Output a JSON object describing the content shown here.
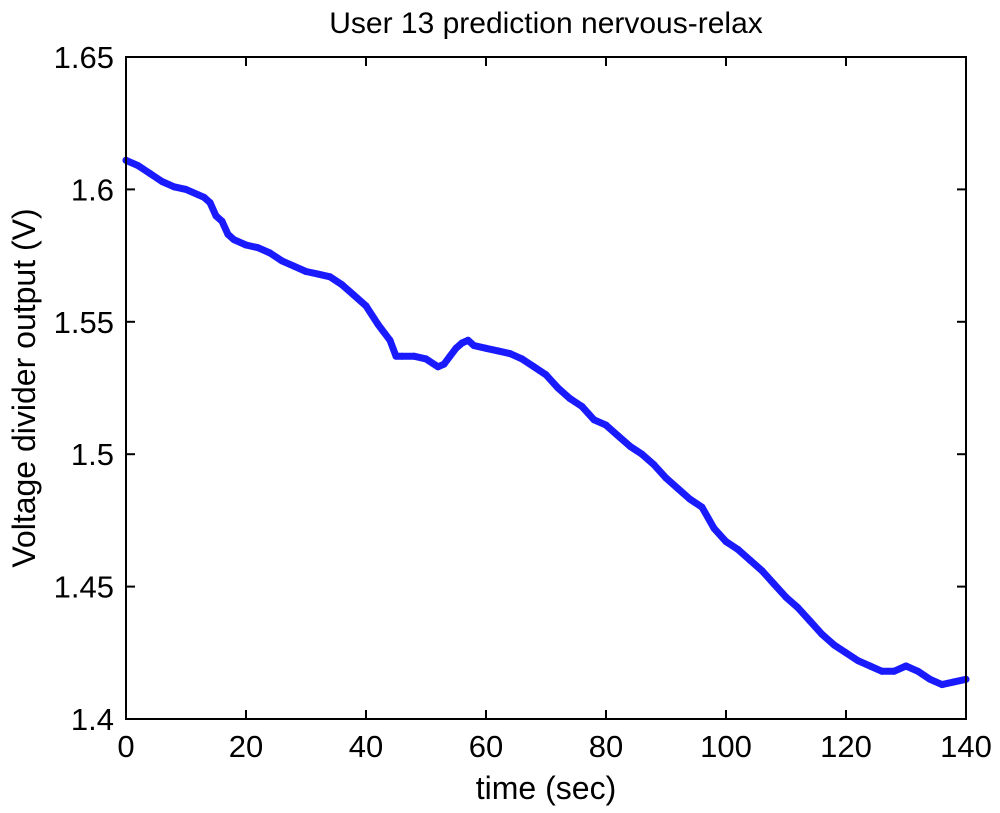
{
  "chart_data": {
    "type": "line",
    "title": "User 13 prediction nervous-relax",
    "xlabel": "time (sec)",
    "ylabel": "Voltage divider output (V)",
    "xlim": [
      0,
      140
    ],
    "ylim": [
      1.4,
      1.65
    ],
    "xticks": [
      0,
      20,
      40,
      60,
      80,
      100,
      120,
      140
    ],
    "xtick_labels": [
      "0",
      "20",
      "40",
      "60",
      "80",
      "100",
      "120",
      "140"
    ],
    "yticks": [
      1.4,
      1.45,
      1.5,
      1.55,
      1.6,
      1.65
    ],
    "ytick_labels": [
      "1.4",
      "1.45",
      "1.5",
      "1.55",
      "1.6",
      "1.65"
    ],
    "grid": false,
    "legend": false,
    "series": [
      {
        "color": "#1a1aff",
        "x": [
          0,
          2,
          4,
          6,
          8,
          10,
          12,
          13,
          14,
          15,
          16,
          17,
          18,
          20,
          22,
          24,
          26,
          28,
          30,
          32,
          34,
          36,
          38,
          40,
          42,
          44,
          45,
          46,
          48,
          50,
          52,
          53,
          54,
          55,
          56,
          57,
          58,
          60,
          62,
          64,
          66,
          68,
          70,
          72,
          74,
          76,
          78,
          80,
          82,
          84,
          86,
          88,
          90,
          92,
          94,
          96,
          98,
          100,
          102,
          104,
          106,
          108,
          110,
          112,
          114,
          116,
          118,
          120,
          122,
          124,
          126,
          128,
          130,
          132,
          134,
          136,
          138,
          140
        ],
        "y": [
          1.611,
          1.609,
          1.606,
          1.603,
          1.601,
          1.6,
          1.598,
          1.597,
          1.595,
          1.59,
          1.588,
          1.583,
          1.581,
          1.579,
          1.578,
          1.576,
          1.573,
          1.571,
          1.569,
          1.568,
          1.567,
          1.564,
          1.56,
          1.556,
          1.549,
          1.543,
          1.537,
          1.537,
          1.537,
          1.536,
          1.533,
          1.534,
          1.537,
          1.54,
          1.542,
          1.543,
          1.541,
          1.54,
          1.539,
          1.538,
          1.536,
          1.533,
          1.53,
          1.525,
          1.521,
          1.518,
          1.513,
          1.511,
          1.507,
          1.503,
          1.5,
          1.496,
          1.491,
          1.487,
          1.483,
          1.48,
          1.472,
          1.467,
          1.464,
          1.46,
          1.456,
          1.451,
          1.446,
          1.442,
          1.437,
          1.432,
          1.428,
          1.425,
          1.422,
          1.42,
          1.418,
          1.418,
          1.42,
          1.418,
          1.415,
          1.413,
          1.414,
          1.415
        ]
      }
    ]
  }
}
